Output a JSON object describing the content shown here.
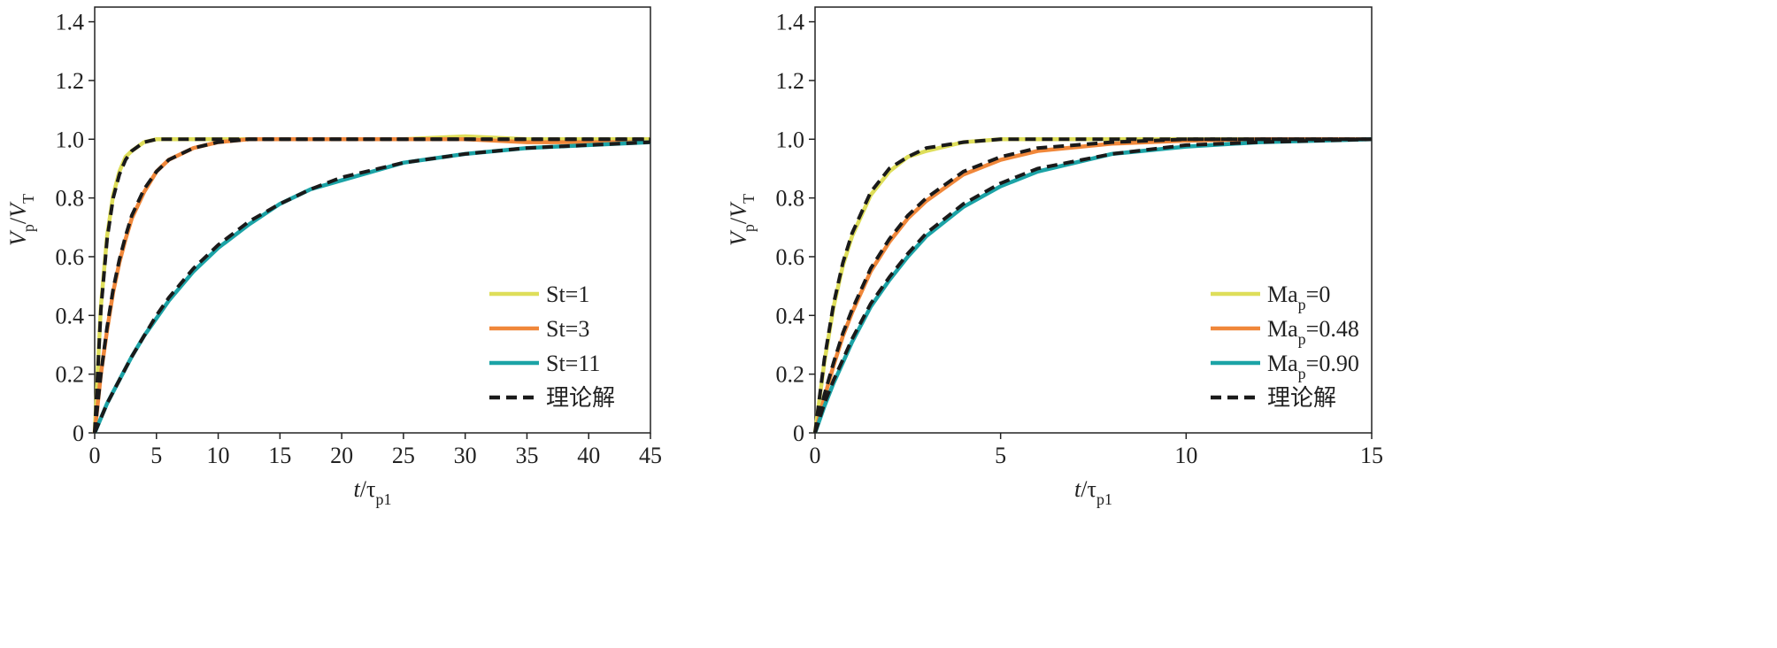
{
  "chart_data": [
    {
      "type": "line",
      "ylabel": [
        {
          "text": "V",
          "style": "italic"
        },
        {
          "text": "p",
          "sub": true
        },
        {
          "text": "/"
        },
        {
          "text": "V",
          "style": "italic"
        },
        {
          "text": "T",
          "sub": true
        }
      ],
      "xlabel": [
        {
          "text": "t",
          "style": "italic"
        },
        {
          "text": "/"
        },
        {
          "text": "τ"
        },
        {
          "text": "p1",
          "sub": true
        }
      ],
      "x": [
        0,
        0.5,
        1,
        1.5,
        2,
        2.5,
        3,
        4,
        5,
        6,
        8,
        10,
        12.5,
        15,
        17.5,
        20,
        25,
        30,
        35,
        40,
        45
      ],
      "series": [
        {
          "name": "St=1",
          "color": "#dede5a",
          "dashed": false,
          "values": [
            0,
            0.43,
            0.67,
            0.81,
            0.89,
            0.94,
            0.96,
            0.99,
            1.0,
            1.0,
            1.0,
            1.0,
            1.0,
            1.0,
            1.0,
            1.0,
            1.0,
            1.01,
            1.0,
            1.0,
            1.0
          ]
        },
        {
          "name": "St=3",
          "color": "#f0873a",
          "dashed": false,
          "values": [
            0,
            0.2,
            0.35,
            0.48,
            0.58,
            0.66,
            0.73,
            0.82,
            0.89,
            0.93,
            0.97,
            0.99,
            1.0,
            1.0,
            1.0,
            1.0,
            1.0,
            1.0,
            0.99,
            0.99,
            0.99
          ]
        },
        {
          "name": "St=11",
          "color": "#1ba3a6",
          "dashed": false,
          "values": [
            0,
            0.05,
            0.1,
            0.14,
            0.18,
            0.22,
            0.26,
            0.33,
            0.39,
            0.45,
            0.55,
            0.63,
            0.71,
            0.78,
            0.83,
            0.86,
            0.92,
            0.95,
            0.97,
            0.98,
            0.99
          ]
        },
        {
          "name": "理论解",
          "color": "#1a1a1a",
          "dashed": true,
          "values": [
            0,
            0.42,
            0.66,
            0.8,
            0.88,
            0.93,
            0.96,
            0.99,
            1.0,
            1.0,
            1.0,
            1.0,
            1.0,
            1.0,
            1.0,
            1.0,
            1.0,
            1.0,
            1.0,
            1.0,
            1.0
          ]
        },
        {
          "color": "#1a1a1a",
          "dashed": true,
          "values": [
            0,
            0.2,
            0.36,
            0.49,
            0.59,
            0.67,
            0.74,
            0.83,
            0.89,
            0.93,
            0.97,
            0.99,
            1.0,
            1.0,
            1.0,
            1.0,
            1.0,
            1.0,
            1.0,
            1.0,
            1.0
          ]
        },
        {
          "color": "#1a1a1a",
          "dashed": true,
          "values": [
            0,
            0.05,
            0.1,
            0.14,
            0.18,
            0.22,
            0.26,
            0.33,
            0.4,
            0.46,
            0.56,
            0.64,
            0.72,
            0.78,
            0.83,
            0.87,
            0.92,
            0.95,
            0.97,
            0.98,
            0.99
          ]
        }
      ],
      "xlim": [
        0,
        45
      ],
      "xticks": [
        0,
        5,
        10,
        15,
        20,
        25,
        30,
        35,
        40,
        45
      ],
      "ylim": [
        0,
        1.45
      ],
      "yticks": [
        0,
        0.2,
        0.4,
        0.6,
        0.8,
        {
          "value": 1,
          "label": "1.0"
        },
        1.2,
        1.4
      ],
      "legend": "lower right"
    },
    {
      "type": "line",
      "ylabel": [
        {
          "text": "V",
          "style": "italic"
        },
        {
          "text": "p",
          "sub": true
        },
        {
          "text": "/"
        },
        {
          "text": "V",
          "style": "italic"
        },
        {
          "text": "T",
          "sub": true
        }
      ],
      "xlabel": [
        {
          "text": "t",
          "style": "italic"
        },
        {
          "text": "/"
        },
        {
          "text": "τ"
        },
        {
          "text": "p1",
          "sub": true
        }
      ],
      "x": [
        0,
        0.25,
        0.5,
        0.75,
        1,
        1.5,
        2,
        2.5,
        3,
        4,
        5,
        6,
        8,
        10,
        12,
        15
      ],
      "series": [
        {
          "name": [
            {
              "text": "Ma"
            },
            {
              "text": "p",
              "sub": true
            },
            {
              "text": "=0"
            }
          ],
          "color": "#dede5a",
          "dashed": false,
          "values": [
            0,
            0.24,
            0.43,
            0.57,
            0.67,
            0.81,
            0.89,
            0.94,
            0.96,
            0.99,
            1.0,
            1.0,
            1.0,
            1.0,
            1.0,
            1.0
          ]
        },
        {
          "name": [
            {
              "text": "Ma"
            },
            {
              "text": "p",
              "sub": true
            },
            {
              "text": "=0.48"
            }
          ],
          "color": "#f0873a",
          "dashed": false,
          "values": [
            0,
            0.12,
            0.23,
            0.33,
            0.41,
            0.55,
            0.65,
            0.73,
            0.79,
            0.88,
            0.93,
            0.96,
            0.985,
            0.995,
            1.0,
            1.0
          ]
        },
        {
          "name": [
            {
              "text": "Ma"
            },
            {
              "text": "p",
              "sub": true
            },
            {
              "text": "=0.90"
            }
          ],
          "color": "#1ba3a6",
          "dashed": false,
          "values": [
            0,
            0.09,
            0.17,
            0.24,
            0.31,
            0.43,
            0.52,
            0.6,
            0.67,
            0.77,
            0.84,
            0.89,
            0.95,
            0.975,
            0.99,
            1.0
          ]
        },
        {
          "name": "理论解",
          "color": "#1a1a1a",
          "dashed": true,
          "values": [
            0,
            0.25,
            0.44,
            0.58,
            0.68,
            0.82,
            0.9,
            0.94,
            0.97,
            0.99,
            1.0,
            1.0,
            1.0,
            1.0,
            1.0,
            1.0
          ]
        },
        {
          "color": "#1a1a1a",
          "dashed": true,
          "values": [
            0,
            0.13,
            0.24,
            0.34,
            0.42,
            0.56,
            0.66,
            0.74,
            0.8,
            0.89,
            0.94,
            0.97,
            0.99,
            1.0,
            1.0,
            1.0
          ]
        },
        {
          "color": "#1a1a1a",
          "dashed": true,
          "values": [
            0,
            0.1,
            0.18,
            0.25,
            0.32,
            0.44,
            0.53,
            0.61,
            0.68,
            0.78,
            0.85,
            0.9,
            0.95,
            0.98,
            0.99,
            1.0
          ]
        }
      ],
      "xlim": [
        0,
        15
      ],
      "xticks": [
        0,
        5,
        10,
        15
      ],
      "ylim": [
        0,
        1.45
      ],
      "yticks": [
        0,
        0.2,
        0.4,
        0.6,
        0.8,
        {
          "value": 1,
          "label": "1.0"
        },
        1.2,
        1.4
      ],
      "legend": "lower right"
    }
  ]
}
